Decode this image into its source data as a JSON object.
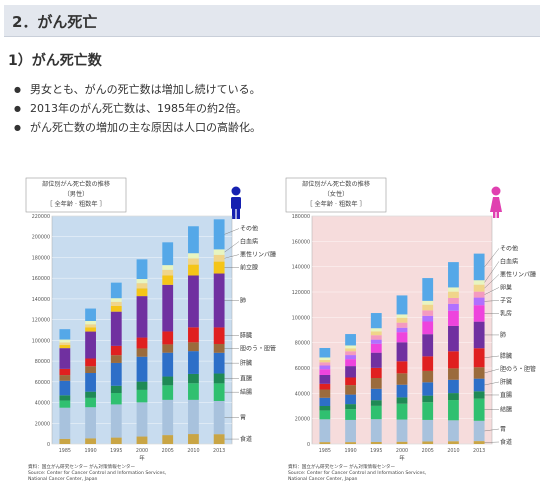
{
  "page": {
    "section_title": "2．がん死亡",
    "sub_title": "1）がん死亡数",
    "bullets": [
      "男女とも、がんの死亡数は増加し続けている。",
      "2013年のがん死亡数は、1985年の約2倍。",
      "がん死亡数の増加の主な原因は人口の高齢化。"
    ]
  },
  "colors": {
    "male_bg": "#c8dcef",
    "female_bg": "#f6dcdc",
    "male_icon": "#1520b0",
    "female_icon": "#e040b0"
  },
  "chart_data": [
    {
      "type": "bar",
      "stacked": true,
      "title_lines": [
        "部位別がん死亡数の推移",
        "（男性）",
        "［ 全年齢 · 粗数年 ］"
      ],
      "xlabel": "年",
      "ylim": [
        0,
        220000
      ],
      "yticks": [
        "0",
        "20000",
        "40000",
        "60000",
        "80000",
        "100000",
        "120000",
        "140000",
        "160000",
        "180000",
        "200000",
        "220000"
      ],
      "categories": [
        "1985",
        "1990",
        "1995",
        "2000",
        "2005",
        "2010",
        "2013"
      ],
      "series": [
        {
          "name": "食道",
          "color": "#c9a545",
          "values": [
            5000,
            5500,
            6200,
            7200,
            8600,
            9600,
            9500
          ]
        },
        {
          "name": "胃",
          "color": "#a8c2dd",
          "values": [
            30000,
            30000,
            32000,
            33000,
            34000,
            33000,
            32000
          ]
        },
        {
          "name": "結腸",
          "color": "#30c070",
          "values": [
            7000,
            9000,
            11000,
            12000,
            14000,
            16000,
            17000
          ]
        },
        {
          "name": "直腸",
          "color": "#1f8a55",
          "values": [
            5000,
            6000,
            7000,
            8000,
            8500,
            9000,
            9500
          ]
        },
        {
          "name": "肝臓",
          "color": "#2d6fc8",
          "values": [
            14000,
            18000,
            22000,
            24000,
            23000,
            22000,
            20000
          ]
        },
        {
          "name": "胆のう・胆管",
          "color": "#9b6b3c",
          "values": [
            5500,
            6500,
            7500,
            8000,
            8000,
            8500,
            8500
          ]
        },
        {
          "name": "膵臓",
          "color": "#e02020",
          "values": [
            6000,
            7500,
            9000,
            10500,
            12500,
            14500,
            16000
          ]
        },
        {
          "name": "肺",
          "color": "#7030a0",
          "values": [
            20000,
            26000,
            33000,
            40000,
            45000,
            50000,
            52000
          ]
        },
        {
          "name": "前立腺",
          "color": "#f5c518",
          "values": [
            3000,
            4000,
            5500,
            7500,
            9000,
            10500,
            11500
          ]
        },
        {
          "name": "悪性リンパ腫",
          "color": "#f0d58a",
          "values": [
            2500,
            3000,
            4000,
            5000,
            5500,
            6000,
            6500
          ]
        },
        {
          "name": "白血病",
          "color": "#e8f5c0",
          "values": [
            2800,
            3200,
            3500,
            4000,
            4500,
            5000,
            5300
          ]
        },
        {
          "name": "その他",
          "color": "#55a8e8",
          "values": [
            10000,
            12000,
            15000,
            19000,
            22000,
            26000,
            29000
          ]
        }
      ],
      "source_lines": [
        "資料：国立がん研究センター がん対策情報センター",
        "Source: Center for Cancer Control and Information Services,",
        "National Cancer Center, Japan"
      ]
    },
    {
      "type": "bar",
      "stacked": true,
      "title_lines": [
        "部位別がん死亡数の推移",
        "（女性）",
        "［ 全年齢 · 粗数年 ］"
      ],
      "xlabel": "年",
      "ylim": [
        0,
        180000
      ],
      "yticks": [
        "0",
        "20000",
        "40000",
        "60000",
        "80000",
        "100000",
        "120000",
        "140000",
        "160000",
        "180000"
      ],
      "categories": [
        "1985",
        "1990",
        "1995",
        "2000",
        "2005",
        "2010",
        "2013"
      ],
      "series": [
        {
          "name": "食道",
          "color": "#c9a545",
          "values": [
            1500,
            1500,
            1600,
            1800,
            2000,
            2200,
            2300
          ]
        },
        {
          "name": "胃",
          "color": "#a8c2dd",
          "values": [
            18000,
            17500,
            18000,
            17500,
            17000,
            16500,
            16000
          ]
        },
        {
          "name": "結腸",
          "color": "#30c070",
          "values": [
            7000,
            8500,
            10500,
            12500,
            14000,
            16000,
            17500
          ]
        },
        {
          "name": "直腸",
          "color": "#1f8a55",
          "values": [
            3500,
            4000,
            4500,
            5000,
            5200,
            5500,
            5800
          ]
        },
        {
          "name": "肝臓",
          "color": "#2d6fc8",
          "values": [
            6500,
            7500,
            9000,
            10000,
            10500,
            10500,
            10000
          ]
        },
        {
          "name": "胆のう・胆管",
          "color": "#9b6b3c",
          "values": [
            6500,
            7500,
            8500,
            9000,
            9000,
            9000,
            9000
          ]
        },
        {
          "name": "膵臓",
          "color": "#e02020",
          "values": [
            4500,
            6000,
            8000,
            9500,
            11500,
            13500,
            15000
          ]
        },
        {
          "name": "肺",
          "color": "#7030a0",
          "values": [
            7000,
            9000,
            12000,
            15000,
            17500,
            20000,
            21000
          ]
        },
        {
          "name": "乳房",
          "color": "#ee44dd",
          "values": [
            4500,
            5500,
            7000,
            8000,
            10000,
            12000,
            13000
          ]
        },
        {
          "name": "子宮",
          "color": "#b070ff",
          "values": [
            3000,
            3200,
            3300,
            3500,
            4500,
            5500,
            6000
          ]
        },
        {
          "name": "卵巣",
          "color": "#f49ac0",
          "values": [
            2500,
            3000,
            3500,
            4000,
            4300,
            4600,
            4700
          ]
        },
        {
          "name": "悪性リンパ腫",
          "color": "#f0d58a",
          "values": [
            1800,
            2300,
            3000,
            3800,
            4500,
            5000,
            5500
          ]
        },
        {
          "name": "白血病",
          "color": "#e8f5c0",
          "values": [
            2000,
            2300,
            2500,
            2700,
            3000,
            3300,
            3500
          ]
        },
        {
          "name": "その他",
          "color": "#55a8e8",
          "values": [
            7500,
            9000,
            12000,
            15000,
            18000,
            20000,
            21000
          ]
        }
      ],
      "source_lines": [
        "資料：国立がん研究センター がん対策情報センター",
        "Source: Center for Cancer Control and Information Services,",
        "National Cancer Center, Japan"
      ]
    }
  ]
}
